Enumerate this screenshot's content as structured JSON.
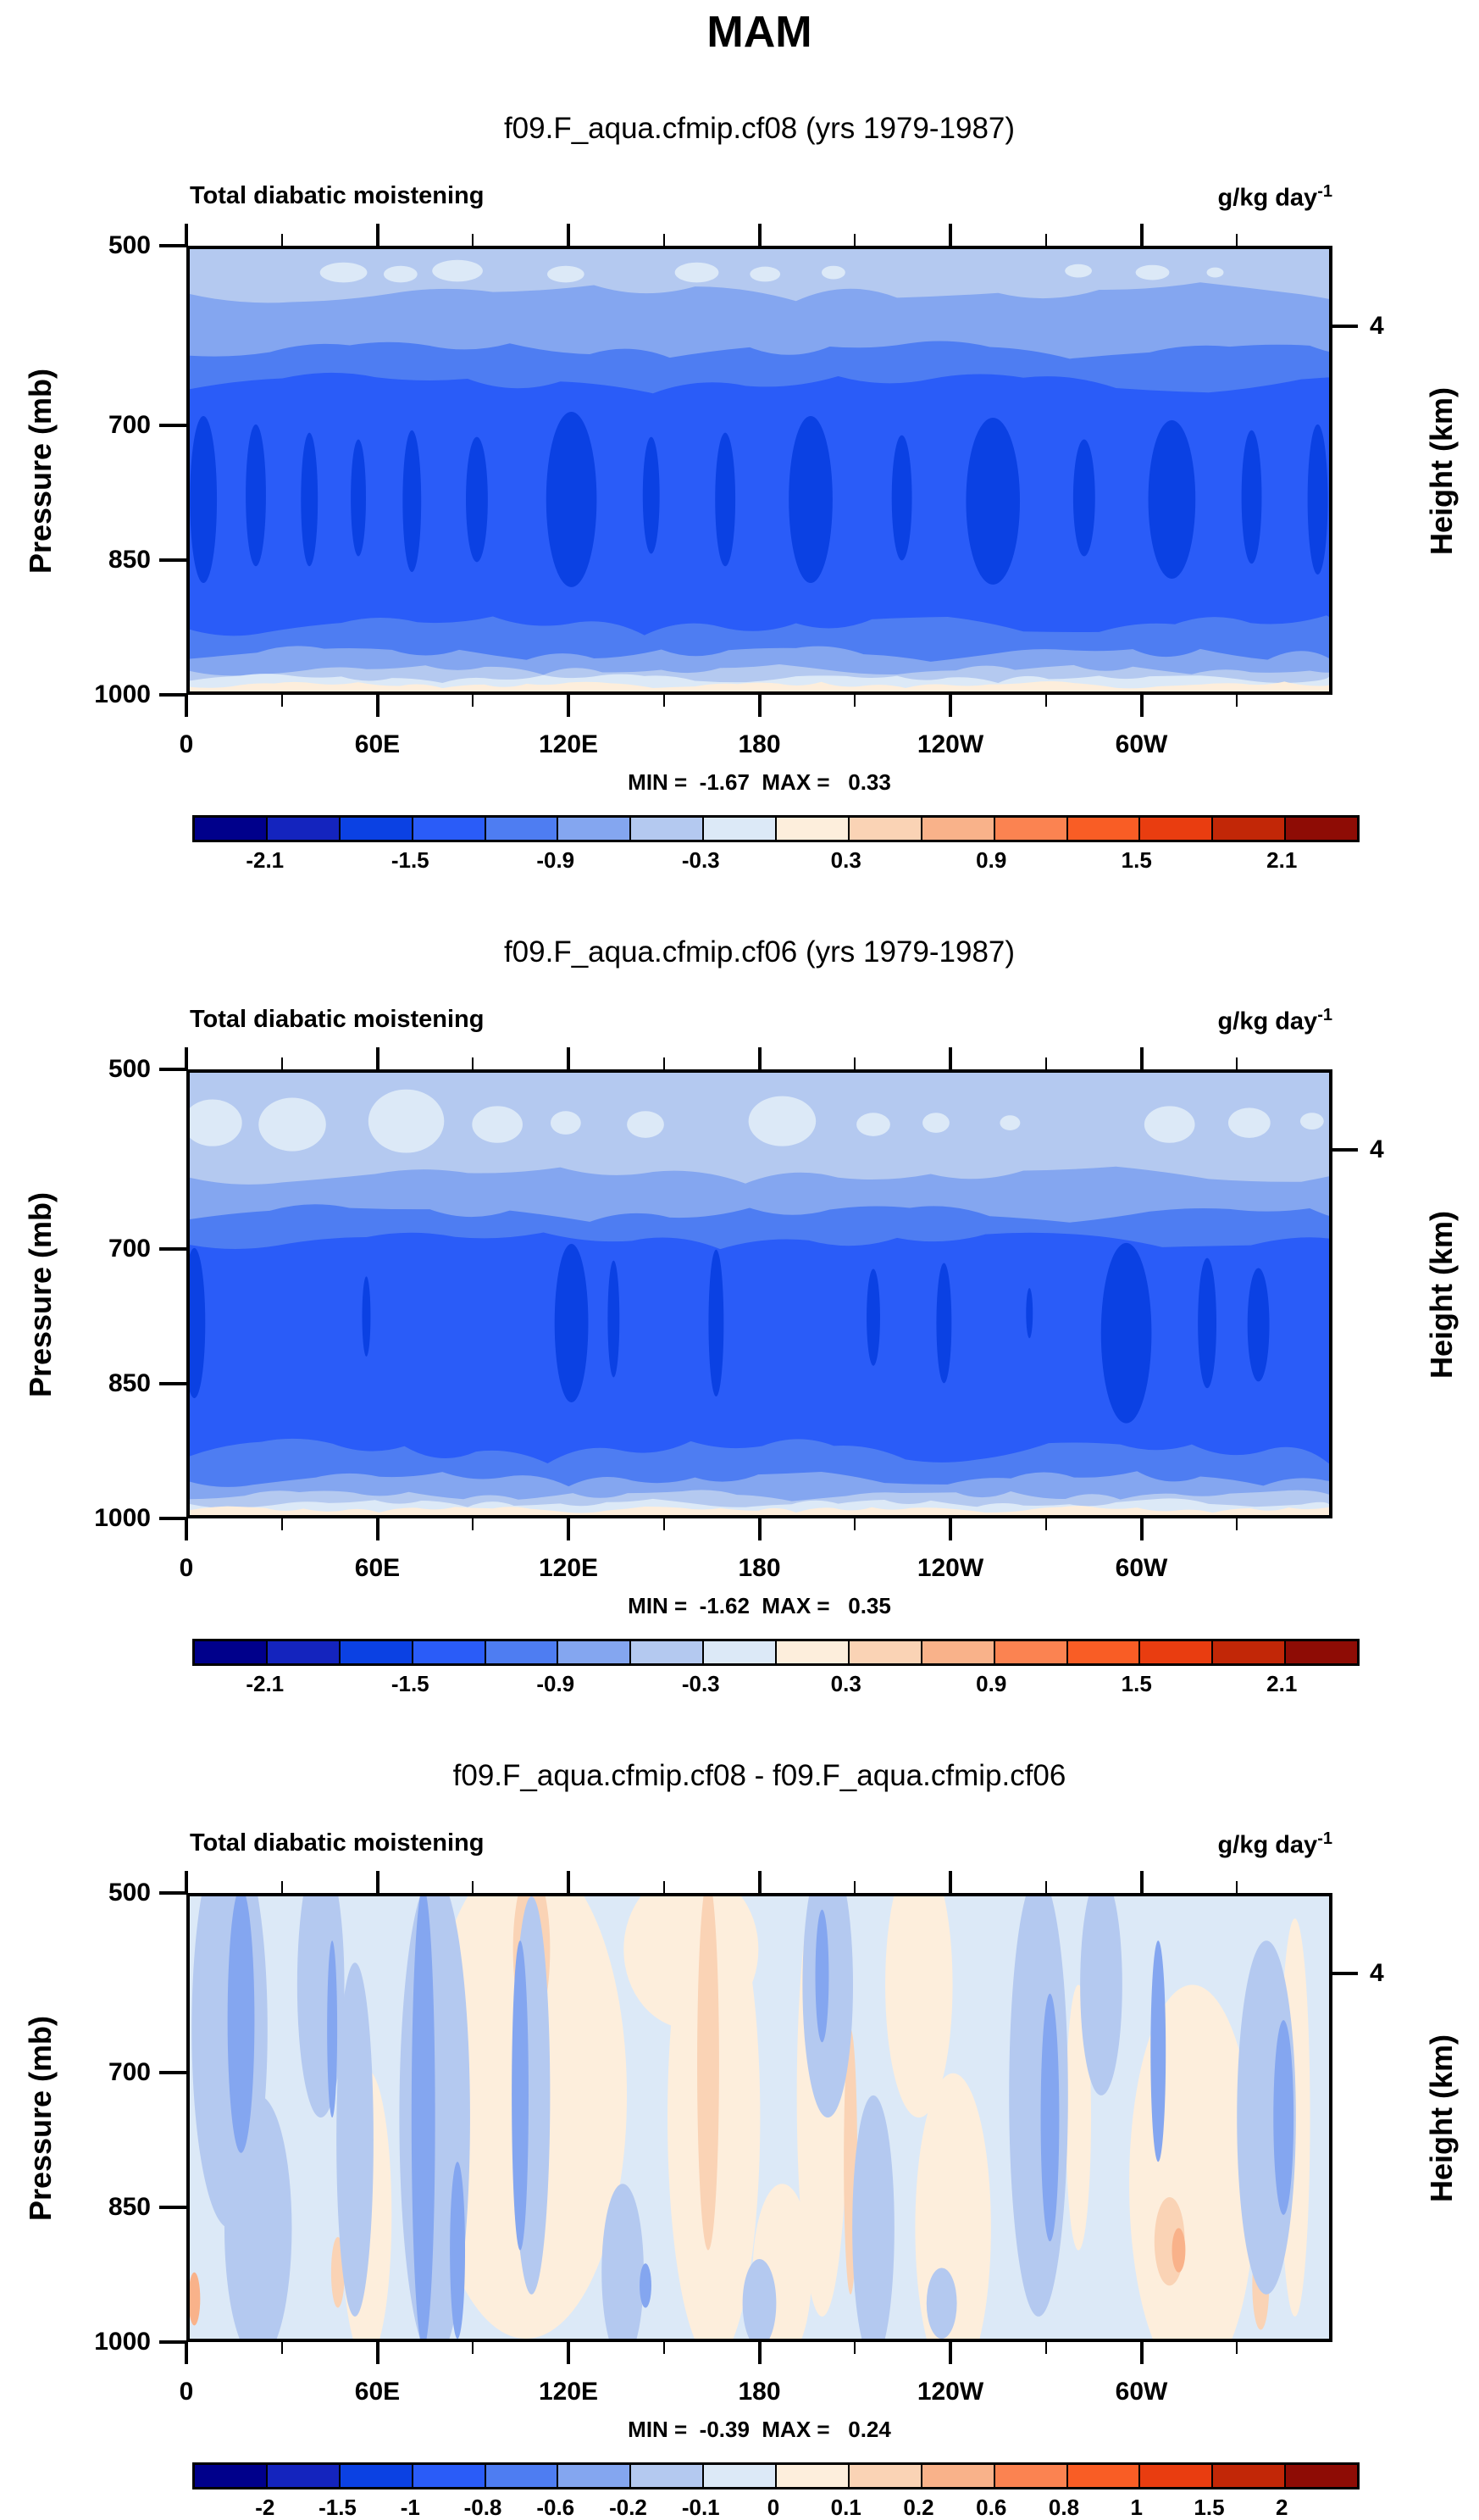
{
  "page": {
    "title": "MAM",
    "background": "#ffffff"
  },
  "chart_data": {
    "type": "contour",
    "title": "MAM",
    "x_axis": {
      "tick_labels": [
        "0",
        "60E",
        "120E",
        "180",
        "120W",
        "60W"
      ],
      "tick_degrees": [
        0,
        60,
        120,
        180,
        240,
        300
      ],
      "minor_step_degrees": 30,
      "range_degrees": [
        0,
        360
      ]
    },
    "y_axis": {
      "label": "Pressure (mb)",
      "tick_labels": [
        "500",
        "700",
        "850",
        "1000"
      ],
      "tick_values": [
        500,
        700,
        850,
        1000
      ],
      "range": [
        500,
        1000
      ],
      "direction": "increasing-down"
    },
    "right_axis": {
      "label": "Height (km)",
      "tick_labels": [
        "4"
      ],
      "tick_values": [
        4
      ],
      "tick_pressure_equivalent_mb": 590
    },
    "colorbar_colors": [
      "#00008B",
      "#1424BE",
      "#0B41E3",
      "#2A5CF8",
      "#4E7DF2",
      "#84A6F0",
      "#B4C9F0",
      "#DCE9F7",
      "#FDEEDC",
      "#FAD3B5",
      "#F9B28A",
      "#FB8351",
      "#F95D25",
      "#E93D10",
      "#C22707",
      "#8E0C05"
    ],
    "panels": [
      {
        "subtitle": "f09.F_aqua.cfmip.cf08 (yrs 1979-1987)",
        "field_label": "Total diabatic moistening",
        "units": {
          "base": "g/kg day",
          "exponent": "-1"
        },
        "stats": "MIN =  -1.67  MAX =   0.33",
        "min": -1.67,
        "max": 0.33,
        "levels": [
          -2.1,
          -1.8,
          -1.5,
          -1.2,
          -0.9,
          -0.6,
          -0.3,
          0,
          0.3,
          0.6,
          0.9,
          1.2,
          1.5,
          1.8,
          2.1
        ],
        "colorbar": {
          "labels": [
            "-2.1",
            "-1.5",
            "-0.9",
            "-0.3",
            "0.3",
            "0.9",
            "1.5",
            "2.1"
          ],
          "boundary_index": [
            1,
            3,
            5,
            7,
            9,
            11,
            13,
            15
          ]
        },
        "field": {
          "bg": 6,
          "top_patches": {
            "color": 7,
            "items": [
              [
                0.135,
                28,
                28,
                12
              ],
              [
                0.185,
                30,
                20,
                10
              ],
              [
                0.235,
                26,
                30,
                13
              ],
              [
                0.33,
                30,
                22,
                10
              ],
              [
                0.445,
                28,
                26,
                12
              ],
              [
                0.505,
                30,
                18,
                9
              ],
              [
                0.565,
                28,
                14,
                8
              ],
              [
                0.78,
                26,
                16,
                8
              ],
              [
                0.845,
                28,
                20,
                9
              ],
              [
                0.9,
                28,
                10,
                6
              ]
            ]
          },
          "bands": [
            [
              5,
              52,
              9,
              120,
              0.2
            ],
            [
              4,
              120,
              8,
              95,
              1.3
            ],
            [
              3,
              160,
              9,
              110,
              2.1
            ]
          ],
          "blobs": {
            "color": 2,
            "items": [
              [
                0.012,
                300,
                16,
                100
              ],
              [
                0.058,
                295,
                12,
                85
              ],
              [
                0.105,
                300,
                10,
                80
              ],
              [
                0.148,
                298,
                9,
                70
              ],
              [
                0.195,
                302,
                11,
                85
              ],
              [
                0.252,
                300,
                13,
                75
              ],
              [
                0.335,
                300,
                30,
                105
              ],
              [
                0.405,
                295,
                10,
                70
              ],
              [
                0.47,
                300,
                12,
                80
              ],
              [
                0.545,
                300,
                26,
                100
              ],
              [
                0.625,
                298,
                12,
                75
              ],
              [
                0.705,
                302,
                32,
                100
              ],
              [
                0.785,
                298,
                13,
                70
              ],
              [
                0.862,
                300,
                28,
                95
              ],
              [
                0.932,
                297,
                12,
                80
              ],
              [
                0.99,
                300,
                12,
                90
              ]
            ]
          },
          "bands_bottom": [
            [
              4,
              450,
              9,
              90,
              0.7
            ],
            [
              5,
              484,
              7,
              80,
              1.7
            ],
            [
              6,
              504,
              5,
              70,
              0.3
            ],
            [
              7,
              514,
              4,
              60,
              2.2
            ],
            [
              8,
              522,
              3,
              50,
              1.1
            ]
          ]
        }
      },
      {
        "subtitle": "f09.F_aqua.cfmip.cf06 (yrs 1979-1987)",
        "field_label": "Total diabatic moistening",
        "units": {
          "base": "g/kg day",
          "exponent": "-1"
        },
        "stats": "MIN =  -1.62  MAX =   0.35",
        "min": -1.62,
        "max": 0.35,
        "levels": [
          -2.1,
          -1.8,
          -1.5,
          -1.2,
          -0.9,
          -0.6,
          -0.3,
          0,
          0.3,
          0.6,
          0.9,
          1.2,
          1.5,
          1.8,
          2.1
        ],
        "colorbar": {
          "labels": [
            "-2.1",
            "-1.5",
            "-0.9",
            "-0.3",
            "0.3",
            "0.9",
            "1.5",
            "2.1"
          ],
          "boundary_index": [
            1,
            3,
            5,
            7,
            9,
            11,
            13,
            15
          ]
        },
        "field": {
          "bg": 6,
          "top_patches": {
            "color": 7,
            "items": [
              [
                0.02,
                60,
                35,
                28
              ],
              [
                0.09,
                62,
                40,
                32
              ],
              [
                0.19,
                58,
                45,
                38
              ],
              [
                0.27,
                62,
                30,
                22
              ],
              [
                0.33,
                60,
                18,
                14
              ],
              [
                0.4,
                62,
                22,
                16
              ],
              [
                0.52,
                58,
                40,
                30
              ],
              [
                0.6,
                62,
                20,
                14
              ],
              [
                0.655,
                60,
                16,
                12
              ],
              [
                0.72,
                60,
                12,
                9
              ],
              [
                0.86,
                62,
                30,
                22
              ],
              [
                0.93,
                60,
                25,
                18
              ],
              [
                0.985,
                58,
                14,
                10
              ]
            ]
          },
          "bands": [
            [
              5,
              122,
              8,
              110,
              0.5
            ],
            [
              4,
              168,
              8,
              95,
              1.9
            ],
            [
              3,
              200,
              8,
              105,
              0.9
            ]
          ],
          "blobs": {
            "color": 2,
            "items": [
              [
                0.004,
                300,
                13,
                90
              ],
              [
                0.155,
                292,
                5,
                48
              ],
              [
                0.335,
                300,
                20,
                95
              ],
              [
                0.372,
                295,
                7,
                70
              ],
              [
                0.462,
                300,
                9,
                88
              ],
              [
                0.6,
                293,
                8,
                58
              ],
              [
                0.662,
                300,
                9,
                72
              ],
              [
                0.737,
                288,
                4,
                30
              ],
              [
                0.822,
                312,
                30,
                108
              ],
              [
                0.893,
                300,
                11,
                78
              ],
              [
                0.938,
                302,
                13,
                68
              ]
            ]
          },
          "bands_bottom": [
            [
              4,
              452,
              11,
              85,
              2.4
            ],
            [
              5,
              486,
              7,
              75,
              0.6
            ],
            [
              6,
              506,
              5,
              65,
              1.5
            ],
            [
              7,
              516,
              4,
              55,
              0.2
            ],
            [
              8,
              523,
              3,
              45,
              2.8
            ]
          ]
        }
      },
      {
        "subtitle": "f09.F_aqua.cfmip.cf08 - f09.F_aqua.cfmip.cf06",
        "field_label": "Total diabatic moistening",
        "units": {
          "base": "g/kg day",
          "exponent": "-1"
        },
        "stats": "MIN =  -0.39  MAX =   0.24",
        "min": -0.39,
        "max": 0.24,
        "levels": [
          -2,
          -1.5,
          -1,
          -0.8,
          -0.6,
          -0.2,
          -0.1,
          0,
          0.1,
          0.2,
          0.6,
          0.8,
          1,
          1.5,
          2
        ],
        "colorbar": {
          "labels": [
            "-2",
            "-1.5",
            "-1",
            "-0.8",
            "-0.6",
            "-0.2",
            "-0.1",
            "0",
            "0.1",
            "0.2",
            "0.6",
            "0.8",
            "1",
            "1.5",
            "2"
          ],
          "boundary_index": [
            1,
            2,
            3,
            4,
            5,
            6,
            7,
            8,
            9,
            10,
            11,
            12,
            13,
            14,
            15
          ]
        },
        "field": {
          "bg": 7,
          "streaks": [
            [
              8,
              0.295,
              0.45,
              120,
              0.55
            ],
            [
              8,
              0.46,
              0.5,
              55,
              0.55
            ],
            [
              8,
              0.44,
              0.12,
              80,
              0.18
            ],
            [
              8,
              0.555,
              0.45,
              30,
              0.5
            ],
            [
              8,
              0.64,
              0.2,
              40,
              0.3
            ],
            [
              8,
              0.67,
              0.75,
              45,
              0.35
            ],
            [
              8,
              0.155,
              0.72,
              30,
              0.33
            ],
            [
              8,
              0.88,
              0.65,
              75,
              0.45
            ],
            [
              8,
              0.97,
              0.5,
              18,
              0.45
            ],
            [
              8,
              0.52,
              0.85,
              35,
              0.2
            ],
            [
              8,
              0.78,
              0.5,
              15,
              0.3
            ],
            [
              9,
              0.3,
              0.12,
              22,
              0.18
            ],
            [
              9,
              0.455,
              0.38,
              13,
              0.42
            ],
            [
              9,
              0.86,
              0.78,
              18,
              0.1
            ],
            [
              9,
              0.58,
              0.6,
              8,
              0.3
            ],
            [
              9,
              0.94,
              0.88,
              10,
              0.1
            ],
            [
              9,
              0.13,
              0.85,
              8,
              0.08
            ],
            [
              10,
              0.868,
              0.8,
              8,
              0.05
            ],
            [
              10,
              0.004,
              0.91,
              7,
              0.06
            ],
            [
              6,
              0.035,
              0.3,
              45,
              0.45
            ],
            [
              6,
              0.06,
              0.75,
              40,
              0.3
            ],
            [
              6,
              0.115,
              0.2,
              28,
              0.3
            ],
            [
              6,
              0.145,
              0.55,
              22,
              0.4
            ],
            [
              6,
              0.215,
              0.5,
              42,
              0.55
            ],
            [
              6,
              0.3,
              0.45,
              22,
              0.45
            ],
            [
              6,
              0.38,
              0.85,
              25,
              0.2
            ],
            [
              6,
              0.56,
              0.2,
              30,
              0.3
            ],
            [
              6,
              0.6,
              0.75,
              25,
              0.3
            ],
            [
              6,
              0.745,
              0.45,
              35,
              0.5
            ],
            [
              6,
              0.8,
              0.2,
              25,
              0.25
            ],
            [
              6,
              0.945,
              0.5,
              35,
              0.4
            ],
            [
              6,
              0.5,
              0.92,
              20,
              0.1
            ],
            [
              6,
              0.66,
              0.92,
              18,
              0.08
            ],
            [
              5,
              0.045,
              0.28,
              16,
              0.3
            ],
            [
              5,
              0.205,
              0.5,
              14,
              0.52
            ],
            [
              5,
              0.235,
              0.8,
              9,
              0.2
            ],
            [
              5,
              0.29,
              0.45,
              10,
              0.35
            ],
            [
              5,
              0.755,
              0.5,
              11,
              0.28
            ],
            [
              5,
              0.125,
              0.3,
              6,
              0.2
            ],
            [
              5,
              0.96,
              0.5,
              12,
              0.22
            ],
            [
              5,
              0.555,
              0.18,
              8,
              0.15
            ],
            [
              5,
              0.4,
              0.88,
              7,
              0.05
            ],
            [
              5,
              0.85,
              0.35,
              9,
              0.25
            ]
          ]
        }
      }
    ]
  }
}
